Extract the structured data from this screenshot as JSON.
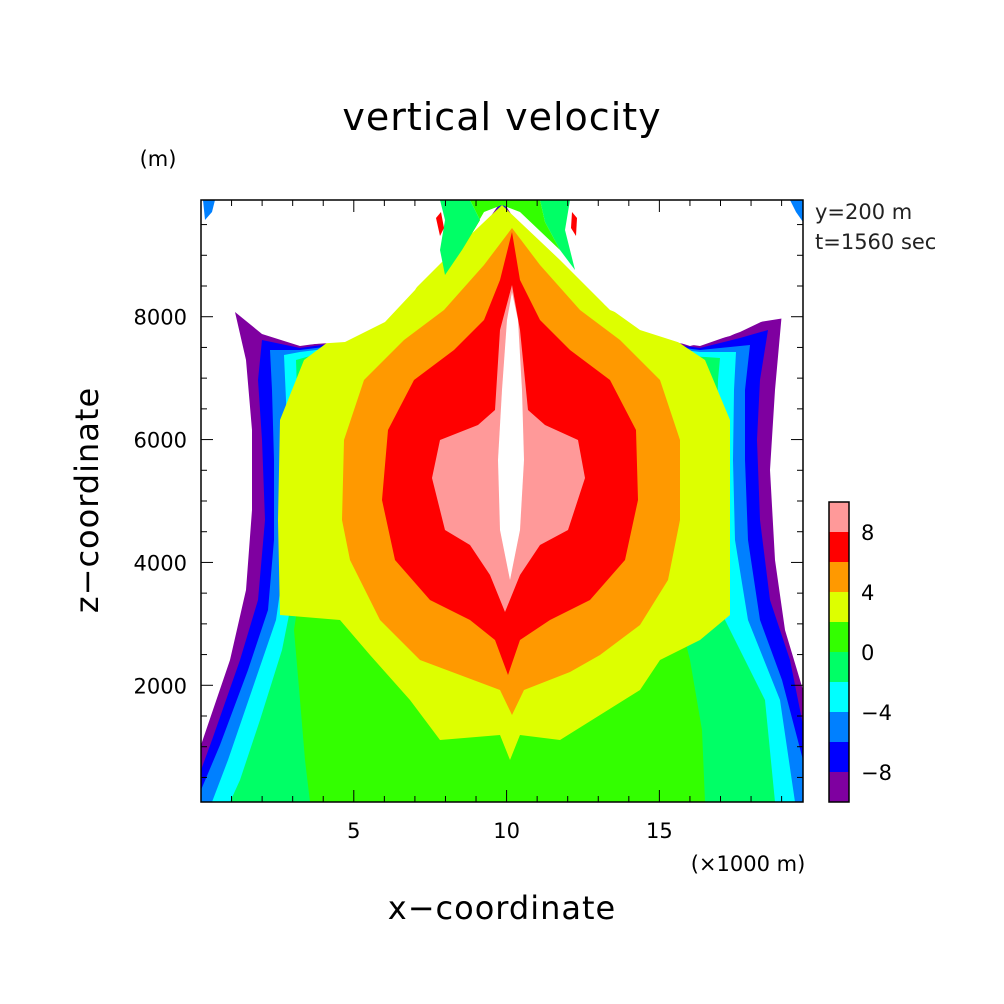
{
  "chart_data": {
    "type": "heatmap",
    "title": "vertical velocity",
    "xlabel": "x−coordinate",
    "ylabel": "z−coordinate",
    "x_unit": "(×1000 m)",
    "y_unit": "(m)",
    "annotations": [
      "y=200 m",
      "t=1560 sec"
    ],
    "xlim": [
      0,
      19.7
    ],
    "ylim": [
      100,
      9900
    ],
    "x_ticks": [
      5,
      10,
      15
    ],
    "x_tick_labels": [
      "5",
      "10",
      "15"
    ],
    "y_ticks": [
      2000,
      4000,
      6000,
      8000
    ],
    "y_tick_labels": [
      "2000",
      "4000",
      "6000",
      "8000"
    ],
    "colorbar": {
      "levels": [
        -10,
        -8,
        -6,
        -4,
        -2,
        0,
        2,
        4,
        6,
        8,
        10
      ],
      "labels": [
        "8",
        "4",
        "0",
        "−4",
        "−8"
      ],
      "label_values": [
        8,
        4,
        0,
        -4,
        -8
      ],
      "colors": [
        "#7f00a0",
        "#0000ff",
        "#0080ff",
        "#00ffff",
        "#00ff66",
        "#33ff00",
        "#ddff00",
        "#ff9900",
        "#ff0000",
        "#ff9999"
      ]
    },
    "legend": "right",
    "grid": false,
    "colors": {
      "lt_-10": "#7f00a0",
      "-10_-8": "#7f00a0",
      "-8_-6": "#0000ff",
      "-6_-4": "#0080ff",
      "-4_-2": "#00ffff",
      "-2_0": "#00ff66",
      "0_2": "#33ff00",
      "2_4": "#ddff00",
      "4_6": "#ff9900",
      "6_8": "#ff0000",
      "8_10": "#ff9999",
      "gt_10": "#ffffff"
    }
  }
}
